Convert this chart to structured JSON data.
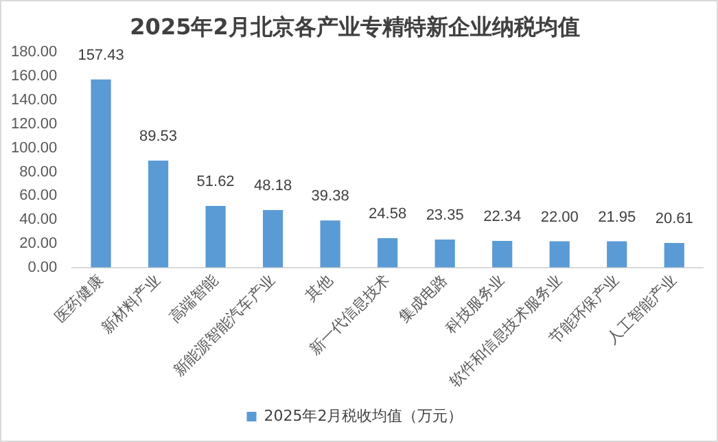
{
  "chart_data": {
    "type": "bar",
    "title": "2025年2月北京各产业专精特新企业纳税均值",
    "categories": [
      "医药健康",
      "新材料产业",
      "高端智能",
      "新能源智能汽车产业",
      "其他",
      "新一代信息技术",
      "集成电路",
      "科技服务业",
      "软件和信息技术服务业",
      "节能环保产业",
      "人工智能产业"
    ],
    "series": [
      {
        "name": "2025年2月税收均值（万元）",
        "color": "#5b9bd5",
        "values": [
          157.43,
          89.53,
          51.62,
          48.18,
          39.38,
          24.58,
          23.35,
          22.34,
          22.0,
          21.95,
          20.61
        ],
        "value_labels": [
          "157.43",
          "89.53",
          "51.62",
          "48.18",
          "39.38",
          "24.58",
          "23.35",
          "22.34",
          "22.00",
          "21.95",
          "20.61"
        ]
      }
    ],
    "ylim": [
      0,
      180
    ],
    "yticks": [
      {
        "value": 0,
        "label": "0.00"
      },
      {
        "value": 20,
        "label": "20.00"
      },
      {
        "value": 40,
        "label": "40.00"
      },
      {
        "value": 60,
        "label": "60.00"
      },
      {
        "value": 80,
        "label": "80.00"
      },
      {
        "value": 100,
        "label": "100.00"
      },
      {
        "value": 120,
        "label": "120.00"
      },
      {
        "value": 140,
        "label": "140.00"
      },
      {
        "value": 160,
        "label": "160.00"
      },
      {
        "value": 180,
        "label": "180.00"
      }
    ],
    "grid": false,
    "legend": "bottom"
  }
}
